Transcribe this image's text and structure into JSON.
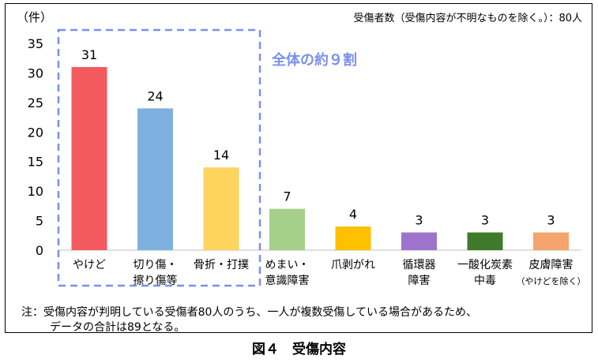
{
  "chart_data": {
    "type": "bar",
    "unit_label": "（件）",
    "info_label": "受傷者数（受傷内容が不明なものを除く。）：80人",
    "ylim": [
      0,
      35
    ],
    "yticks": [
      0,
      5,
      10,
      15,
      20,
      25,
      30,
      35
    ],
    "grid": false,
    "categories": [
      [
        "やけど"
      ],
      [
        "切り傷・",
        "擦り傷等"
      ],
      [
        "骨折・打撲"
      ],
      [
        "めまい・",
        "意識障害"
      ],
      [
        "爪剥がれ"
      ],
      [
        "循環器",
        "障害"
      ],
      [
        "一酸化炭素",
        "中毒"
      ],
      [
        "皮膚障害",
        "（やけどを除く）"
      ]
    ],
    "values": [
      31,
      24,
      14,
      7,
      4,
      3,
      3,
      3
    ],
    "colors": [
      "#f25a5e",
      "#7fb1e0",
      "#fcd45e",
      "#a4d08a",
      "#ffc000",
      "#9e73cc",
      "#3d7b2a",
      "#f4a46c"
    ],
    "annotation": "全体の約９割",
    "annotation_color": "#7b8ff0"
  },
  "note": {
    "line1": "注：受傷内容が判明している受傷者80人のうち、一人が複数受傷している場合があるため、",
    "line2": "データの合計は89となる。"
  },
  "caption": "図４　受傷内容"
}
